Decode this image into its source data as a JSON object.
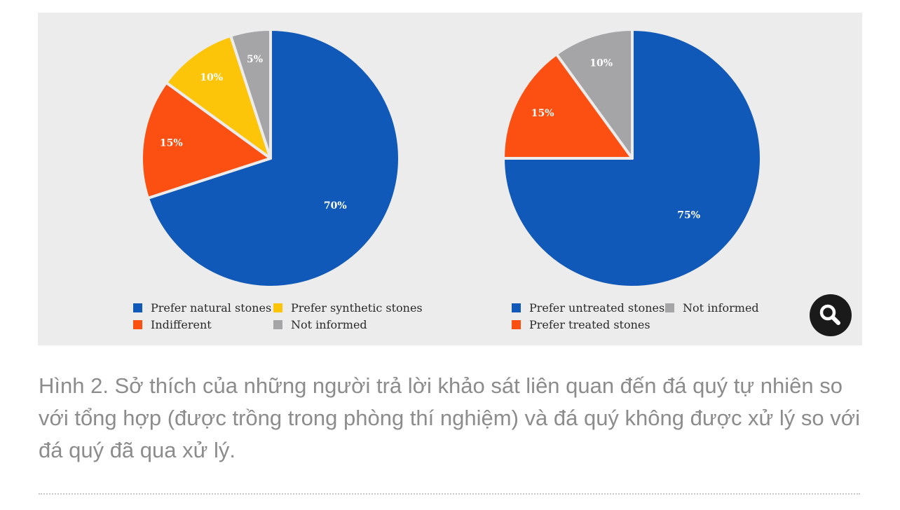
{
  "chart_data": [
    {
      "type": "pie",
      "title": "",
      "slices": [
        {
          "label": "Prefer natural stones",
          "value": 70,
          "display": "70%",
          "color": "#1059b8"
        },
        {
          "label": "Indifferent",
          "value": 15,
          "display": "15%",
          "color": "#fb5012"
        },
        {
          "label": "Prefer synthetic stones",
          "value": 10,
          "display": "10%",
          "color": "#fdc50a"
        },
        {
          "label": "Not informed",
          "value": 5,
          "display": "5%",
          "color": "#a5a5a8"
        }
      ],
      "legend": {
        "placement": "bottom",
        "items": [
          {
            "label": "Prefer natural stones",
            "color": "#1059b8"
          },
          {
            "label": "Prefer synthetic stones",
            "color": "#fdc50a"
          },
          {
            "label": "Indifferent",
            "color": "#fb5012"
          },
          {
            "label": "Not informed",
            "color": "#a5a5a8"
          }
        ]
      }
    },
    {
      "type": "pie",
      "title": "",
      "slices": [
        {
          "label": "Prefer untreated stones",
          "value": 75,
          "display": "75%",
          "color": "#1059b8"
        },
        {
          "label": "Prefer treated stones",
          "value": 15,
          "display": "15%",
          "color": "#fb5012"
        },
        {
          "label": "Not informed",
          "value": 10,
          "display": "10%",
          "color": "#a5a5a8"
        }
      ],
      "legend": {
        "placement": "bottom",
        "items": [
          {
            "label": "Prefer untreated stones",
            "color": "#1059b8"
          },
          {
            "label": "Not informed",
            "color": "#a5a5a8"
          },
          {
            "label": "Prefer treated stones",
            "color": "#fb5012"
          }
        ]
      }
    }
  ],
  "zoom_button": {
    "icon": "magnifier-icon"
  },
  "caption": "Hình 2. Sở thích của những người trả lời khảo sát liên quan đến đá quý tự nhiên so với tổng hợp (được trồng trong phòng thí nghiệm) và đá quý không được xử lý so với đá quý đã qua xử lý."
}
